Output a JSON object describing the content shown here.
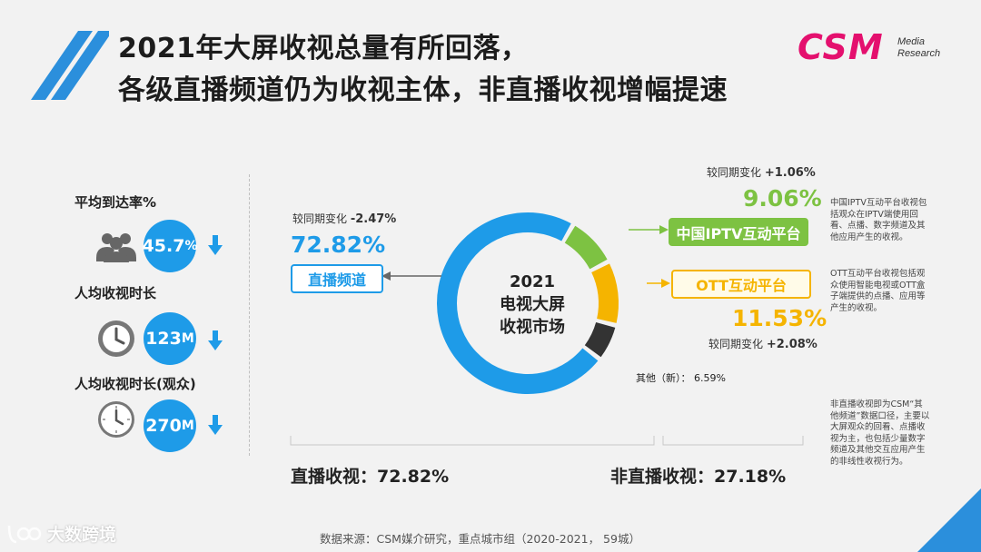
{
  "title": {
    "line1": "2021年大屏收视总量有所回落，",
    "line2": "各级直播频道仍为收视主体，非直播收视增幅提速"
  },
  "logo": {
    "main": "CSM",
    "sub1": "Media",
    "sub2": "Research"
  },
  "metrics": [
    {
      "label": "平均到达率%",
      "value": "45.7",
      "unit": "%",
      "icon": "people-icon",
      "trend": "down-arrow-icon"
    },
    {
      "label": "人均收视时长",
      "value": "123",
      "unit": "M",
      "icon": "clock-icon",
      "trend": "down-arrow-icon"
    },
    {
      "label": "人均收视时长(观众)",
      "value": "270",
      "unit": "M",
      "icon": "clock-icon",
      "trend": "down-arrow-icon"
    }
  ],
  "center": {
    "year": "2021",
    "line1": "电视大屏",
    "line2": "收视市场"
  },
  "segments": {
    "live": {
      "change_label": "较同期变化 ",
      "change": "-2.47%",
      "value": "72.82%",
      "name": "直播频道"
    },
    "iptv": {
      "change_label": "较同期变化 ",
      "change": "+1.06%",
      "value": "9.06%",
      "name": "中国IPTV互动平台",
      "note": "中国IPTV互动平台收视包括观众在IPTV端使用回看、点播、数字频道及其他应用产生的收视。"
    },
    "ott": {
      "change_label": "较同期变化 ",
      "change": "+2.08%",
      "value": "11.53%",
      "name": "OTT互动平台",
      "note": "OTT互动平台收视包括观众使用智能电视或OTT盒子端提供的点播、应用等产生的收视。"
    },
    "other": {
      "label": "其他（新）：  6.59%",
      "note": "非直播收视即为CSM“其他频道”数据口径，主要以大屏观众的回看、点播收视为主，也包括少量数字频道及其他交互应用产生的非线性收视行为。"
    }
  },
  "totals": {
    "live": "直播收视：72.82%",
    "nonlive": "非直播收视：27.18%"
  },
  "source": "数据来源：CSM媒介研究，重点城市组（2020-2021，  59城）",
  "watermark": "大数跨境",
  "colors": {
    "blue": "#1e9be8",
    "green": "#7dc242",
    "yellow": "#f5b400",
    "dark": "#333333",
    "pink": "#e4106e"
  },
  "chart_data": {
    "type": "pie",
    "categories": [
      "直播频道",
      "中国IPTV互动平台",
      "OTT互动平台",
      "其他（新）"
    ],
    "values": [
      72.82,
      9.06,
      11.53,
      6.59
    ],
    "changes": [
      "-2.47%",
      "+1.06%",
      "+2.08%",
      ""
    ],
    "title": "2021 电视大屏收视市场"
  }
}
